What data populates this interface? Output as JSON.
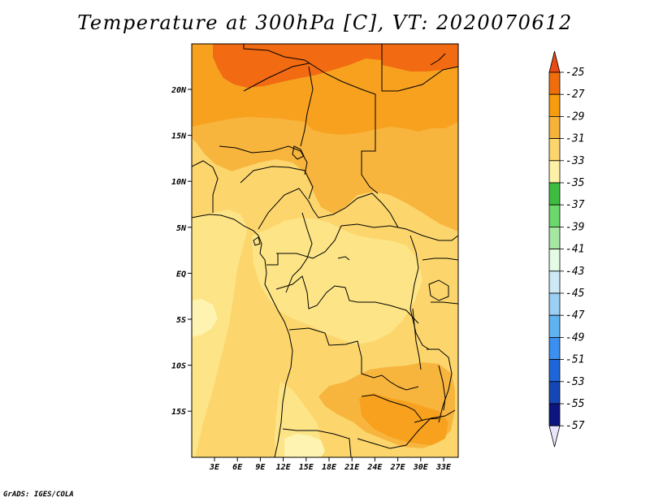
{
  "title": "Temperature at 300hPa [C], VT: 2020070612",
  "credit": "GrADS: IGES/COLA",
  "map": {
    "lon_labels": [
      "3E",
      "6E",
      "9E",
      "12E",
      "15E",
      "18E",
      "21E",
      "24E",
      "27E",
      "30E",
      "33E"
    ],
    "lat_labels": [
      "20N",
      "15N",
      "10N",
      "5N",
      "EQ",
      "5S",
      "10S",
      "15S"
    ]
  },
  "legend": {
    "values": [
      "-25",
      "-27",
      "-29",
      "-31",
      "-33",
      "-35",
      "-37",
      "-39",
      "-41",
      "-43",
      "-45",
      "-47",
      "-49",
      "-51",
      "-53",
      "-55",
      "-57"
    ],
    "colors": [
      "#e84b14",
      "#f06d0e",
      "#f79c0f",
      "#f7b23a",
      "#fcd66d",
      "#fef0a6",
      "#3dbd3f",
      "#6bd86c",
      "#a6e8a3",
      "#e4fbe6",
      "#cde8f7",
      "#9bcff3",
      "#5fb3f0",
      "#3a8ff0",
      "#1e66d8",
      "#1446b5",
      "#0c1480",
      "#e8e4fb"
    ]
  },
  "colors": {
    "darkest_orange": "#f26a12",
    "dark_orange": "#f7a11f",
    "mid_orange": "#f8b53e",
    "light_orange": "#fbcf5c",
    "pale_yellow": "#fde587",
    "cream": "#fef3b0"
  }
}
